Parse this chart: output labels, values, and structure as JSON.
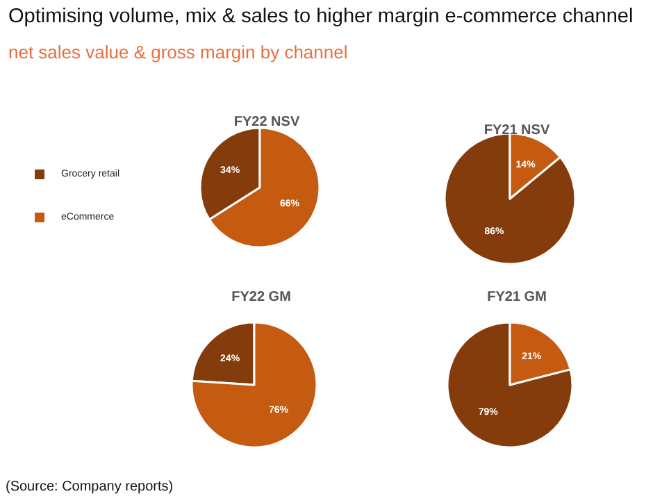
{
  "chart_data": [
    {
      "type": "pie",
      "title": "FY22 NSV",
      "categories": [
        "Grocery retail",
        "eCommerce"
      ],
      "values": [
        34,
        66
      ],
      "value_labels": [
        "34%",
        "66%"
      ],
      "colors": [
        "#843c0c",
        "#c55a11"
      ],
      "legend": "left",
      "annotations": [
        "Optimising volume, mix & sales to higher margin e-commerce channel",
        "net sales value & gross margin by channel",
        "(Source: Company reports)"
      ]
    },
    {
      "type": "pie",
      "title": "FY21 NSV",
      "categories": [
        null,
        null
      ],
      "values": [
        86,
        14
      ],
      "value_labels": [
        "86%",
        "14%"
      ],
      "colors": [
        "#843c0c",
        "#c55a11"
      ]
    },
    {
      "type": "pie",
      "title": "FY22 GM",
      "categories": [
        null,
        null
      ],
      "values": [
        24,
        76
      ],
      "value_labels": [
        "24%",
        "76%"
      ],
      "colors": [
        "#843c0c",
        "#c55a11"
      ]
    },
    {
      "type": "pie",
      "title": "FY21 GM",
      "categories": [
        null,
        null
      ],
      "values": [
        79,
        21
      ],
      "value_labels": [
        "79%",
        "21%"
      ],
      "colors": [
        "#843c0c",
        "#c55a11"
      ]
    }
  ]
}
